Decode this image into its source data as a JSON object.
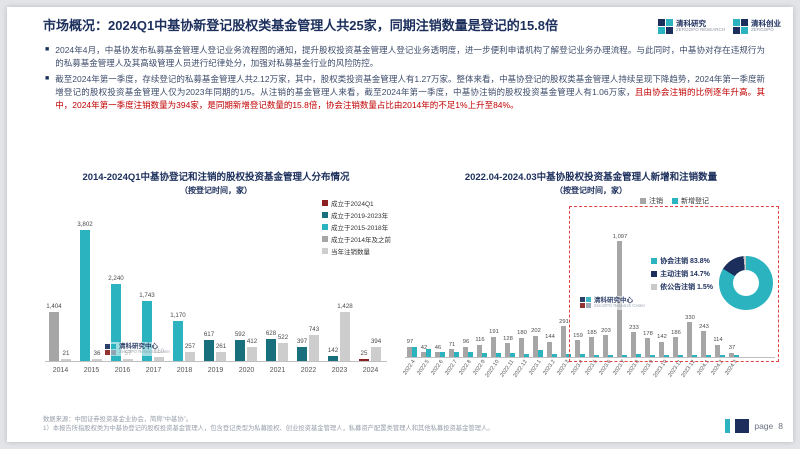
{
  "slide": {
    "title": "市场概况：2024Q1中基协新登记股权类基金管理人共25家，同期注销数量是登记的15.8倍",
    "page_label": "page",
    "page_number": "8"
  },
  "logos": [
    {
      "cn": "清科研究",
      "en": "ZERO2IPO RESEARCH"
    },
    {
      "cn": "清科创业",
      "en": "ZERO2IPO"
    }
  ],
  "watermark": {
    "cn": "清科研究中心",
    "en": "Zero2IPO Research Center"
  },
  "bullets": [
    {
      "text": "2024年4月，中基协发布私募基金管理人登记业务流程图的通知，提升股权投资基金管理人登记业务透明度，进一步便利申请机构了解登记业务办理流程。与此同时，中基协对存在违规行为的私募基金管理人及其高级管理人员进行纪律处分，加强对私募基金行业的风险防控。",
      "highlight": ""
    },
    {
      "text": "截至2024年第一季度，存续登记的私募基金管理人共2.12万家，其中，股权类投资基金管理人有1.27万家。整体来看，中基协登记的股权类基金管理人持续呈现下降趋势，2024年第一季度新增登记的股权投资基金管理人仅为2023年同期的1/5。从注销的基金管理人来看，截至2024年第一季度，中基协注销的股权投资基金管理人有1.06万家，",
      "highlight": "且由协会注销的比例逐年升高。其中，2024年第一季度注销数量为394家，是同期新增登记数量的15.8倍，协会注销数量占比由2014年的不足1%上升至84%。"
    }
  ],
  "footnotes": [
    "数据来源：中国证券投资基金业协会，简称“中基协”。",
    "1）本报告所指股权类为中基协登记的股权投资基金管理人，包含登记类型为私募股权、创业投资基金管理人，私募资产配置类管理人和其他私募投资基金管理人。"
  ],
  "chart_data": [
    {
      "type": "bar",
      "title": "2014-2024Q1中基协登记和注销的股权投资基金管理人分布情况",
      "subtitle": "（按登记时间，家）",
      "categories": [
        "2014",
        "2015",
        "2016",
        "2017",
        "2018",
        "2019",
        "2020",
        "2021",
        "2022",
        "2023",
        "2024"
      ],
      "bar_colors": [
        "#a6a6a6",
        "#2bb3c0",
        "#2bb3c0",
        "#2bb3c0",
        "#2bb3c0",
        "#17707c",
        "#17707c",
        "#17707c",
        "#17707c",
        "#17707c",
        "#8b2020"
      ],
      "series": [
        {
          "name": "新登记",
          "values": [
            1404,
            3802,
            2240,
            1743,
            1170,
            617,
            592,
            628,
            397,
            142,
            25
          ],
          "labels": [
            "1,404",
            "3,802",
            "2,240",
            "1,743",
            "1,170",
            "617",
            "592",
            "628",
            "397",
            "142",
            "25"
          ]
        },
        {
          "name": "当年注销数量",
          "color": "#cdcdcd",
          "values": [
            21,
            36,
            57,
            110,
            257,
            261,
            412,
            522,
            743,
            1428,
            394
          ],
          "labels": [
            "21",
            "36",
            "57",
            "110",
            "257",
            "261",
            "412",
            "522",
            "743",
            "1,428",
            "394"
          ]
        }
      ],
      "legend": [
        {
          "label": "成立于2024Q1",
          "color": "#8b2020"
        },
        {
          "label": "成立于2019-2023年",
          "color": "#17707c"
        },
        {
          "label": "成立于2015-2018年",
          "color": "#2bb3c0"
        },
        {
          "label": "成立于2014年及之前",
          "color": "#a6a6a6"
        },
        {
          "label": "当年注销数量",
          "color": "#cdcdcd"
        }
      ],
      "ylim": [
        0,
        4000
      ],
      "grid": false,
      "legend_position": "top-right"
    },
    {
      "type": "bar",
      "title": "2022.04-2024.03中基协股权投资基金管理人新增和注销数量",
      "subtitle": "（按登记时间，家）",
      "categories": [
        "2022.4",
        "2022.5",
        "2022.6",
        "2022.7",
        "2022.8",
        "2022.9",
        "2022.10",
        "2022.11",
        "2022.12",
        "2023.1",
        "2023.2",
        "2023.3",
        "2023.4",
        "2023.5",
        "2023.6",
        "2023.7",
        "2023.8",
        "2023.9",
        "2023.10",
        "2023.11",
        "2023.12",
        "2024.1",
        "2024.2",
        "2024.3"
      ],
      "series": [
        {
          "name": "注销",
          "color": "#a6a6a6",
          "values": [
            97,
            42,
            46,
            71,
            96,
            116,
            191,
            128,
            180,
            202,
            144,
            291,
            159,
            185,
            203,
            1097,
            233,
            178,
            142,
            186,
            330,
            243,
            114,
            37
          ],
          "labels": [
            "97",
            "42",
            "46",
            "71",
            "96",
            "116",
            "191",
            "128",
            "180",
            "202",
            "144",
            "291",
            "159",
            "185",
            "203",
            "1,097",
            "233",
            "178",
            "142",
            "186",
            "330",
            "243",
            "114",
            "37"
          ]
        },
        {
          "name": "新增登记",
          "color": "#2bb3c0",
          "values": [
            96,
            71,
            46,
            42,
            49,
            40,
            37,
            33,
            29,
            70,
            24,
            31,
            27,
            21,
            16,
            14,
            24,
            16,
            9,
            11,
            7,
            9,
            9,
            7
          ],
          "labels": []
        }
      ],
      "legend": [
        {
          "label": "注销",
          "color": "#a6a6a6"
        },
        {
          "label": "新增登记",
          "color": "#2bb3c0"
        }
      ],
      "ylim": [
        0,
        1100
      ],
      "grid": false,
      "legend_position": "top-right",
      "highlight_box_from_index": 12
    },
    {
      "type": "pie",
      "donut": true,
      "slices": [
        {
          "label": "协会注销",
          "pct": 83.8,
          "pct_label": "83.8%",
          "color": "#2bb3c0"
        },
        {
          "label": "主动注销",
          "pct": 14.7,
          "pct_label": "14.7%",
          "color": "#1c2f5c"
        },
        {
          "label": "依公告注销",
          "pct": 1.5,
          "pct_label": "1.5%",
          "color": "#c9c9c9"
        }
      ]
    }
  ]
}
